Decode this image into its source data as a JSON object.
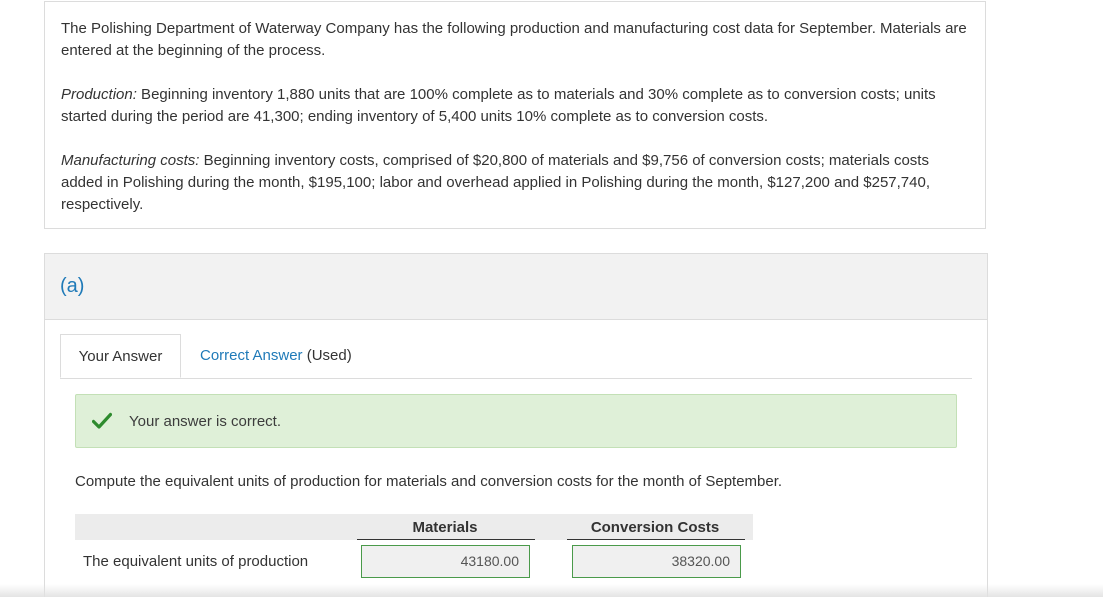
{
  "problem": {
    "intro": "The Polishing Department of Waterway Company has the following production and manufacturing cost data for September. Materials are entered at the beginning of the process.",
    "production_lead": "Production:",
    "production_text": " Beginning inventory 1,880 units that are 100% complete as to materials and 30% complete as to conversion costs; units started during the period are 41,300; ending inventory of 5,400 units 10% complete as to conversion costs.",
    "costs_lead": "Manufacturing costs:",
    "costs_text": " Beginning inventory costs, comprised of $20,800 of materials and $9,756 of conversion costs; materials costs added in Polishing during the month, $195,100; labor and overhead applied in Polishing during the month, $127,200 and $257,740, respectively."
  },
  "part": {
    "label": "(a)",
    "tabs": {
      "your_answer": "Your Answer",
      "correct_answer_link": "Correct Answer",
      "correct_answer_suffix": " (Used)"
    },
    "feedback": {
      "icon": "check-icon",
      "text": "Your answer is correct.",
      "color": "#dff0d8"
    },
    "question": "Compute the equivalent units of production for materials and conversion costs for the month of September.",
    "table": {
      "headers": [
        "Materials",
        "Conversion Costs"
      ],
      "row_label": "The equivalent units of production",
      "values": [
        "43180.00",
        "38320.00"
      ]
    }
  },
  "colors": {
    "accent": "#1f7ab8",
    "success_bg": "#dff0d8",
    "check": "#2e8b2e"
  }
}
